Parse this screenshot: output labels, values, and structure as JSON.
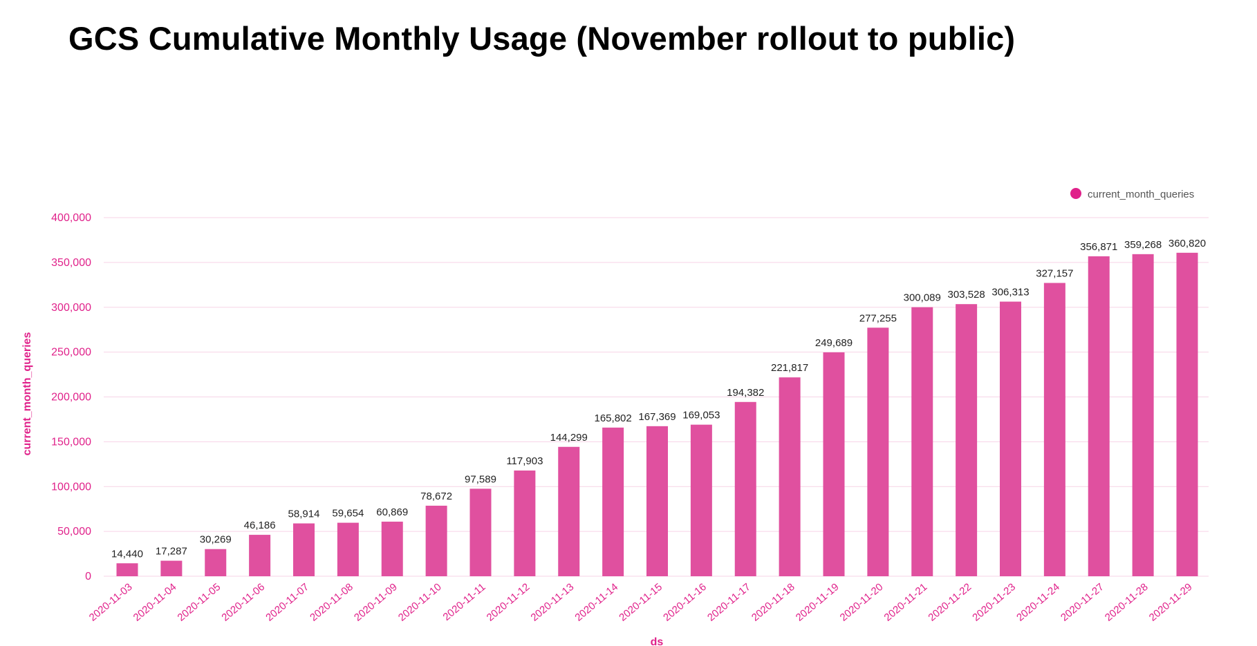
{
  "title": "GCS Cumulative Monthly Usage (November rollout to public)",
  "chart_data": {
    "type": "bar",
    "title": "GCS Cumulative Monthly Usage (November rollout to public)",
    "xlabel": "ds",
    "ylabel": "current_month_queries",
    "ylim": [
      0,
      400000
    ],
    "yticks": [
      0,
      50000,
      100000,
      150000,
      200000,
      250000,
      300000,
      350000,
      400000
    ],
    "ytick_labels": [
      "0",
      "50,000",
      "100,000",
      "150,000",
      "200,000",
      "250,000",
      "300,000",
      "350,000",
      "400,000"
    ],
    "grid": true,
    "legend_position": "top-right",
    "bar_color": "#e0509f",
    "axis_color": "#e0218a",
    "categories": [
      "2020-11-03",
      "2020-11-04",
      "2020-11-05",
      "2020-11-06",
      "2020-11-07",
      "2020-11-08",
      "2020-11-09",
      "2020-11-10",
      "2020-11-11",
      "2020-11-12",
      "2020-11-13",
      "2020-11-14",
      "2020-11-15",
      "2020-11-16",
      "2020-11-17",
      "2020-11-18",
      "2020-11-19",
      "2020-11-20",
      "2020-11-21",
      "2020-11-22",
      "2020-11-23",
      "2020-11-24",
      "2020-11-27",
      "2020-11-28",
      "2020-11-29"
    ],
    "series": [
      {
        "name": "current_month_queries",
        "values": [
          14440,
          17287,
          30269,
          46186,
          58914,
          59654,
          60869,
          78672,
          97589,
          117903,
          144299,
          165802,
          167369,
          169053,
          194382,
          221817,
          249689,
          277255,
          300089,
          303528,
          306313,
          327157,
          356871,
          359268,
          360820
        ],
        "labels": [
          "14,440",
          "17,287",
          "30,269",
          "46,186",
          "58,914",
          "59,654",
          "60,869",
          "78,672",
          "97,589",
          "117,903",
          "144,299",
          "165,802",
          "167,369",
          "169,053",
          "194,382",
          "221,817",
          "249,689",
          "277,255",
          "300,089",
          "303,528",
          "306,313",
          "327,157",
          "356,871",
          "359,268",
          "360,820"
        ]
      }
    ]
  }
}
